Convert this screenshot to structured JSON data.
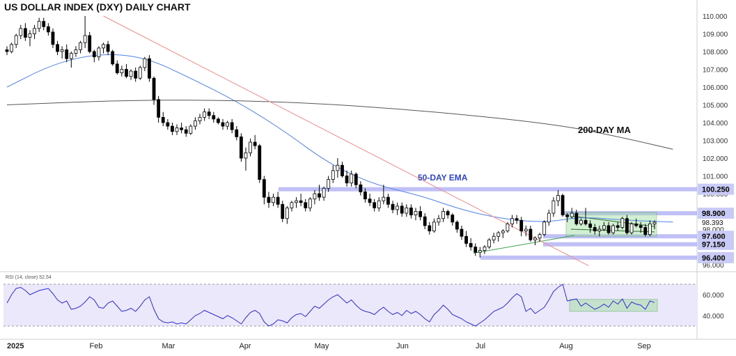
{
  "chart_data": {
    "type": "candlestick",
    "title": "US DOLLAR INDEX (DXY) DAILY CHART",
    "price_axis": {
      "ylim": [
        95.8,
        110.6
      ],
      "ticks": [
        "110.000",
        "109.000",
        "108.000",
        "107.000",
        "106.000",
        "105.000",
        "104.000",
        "103.000",
        "102.000",
        "101.000",
        "100.000",
        "99.000",
        "98.000",
        "97.000",
        "96.000"
      ]
    },
    "x_axis": {
      "labels": [
        "2025",
        "Feb",
        "Mar",
        "Apr",
        "May",
        "Jun",
        "Jul",
        "Aug",
        "Sep"
      ]
    },
    "ohlc": [
      [
        108.1,
        108.3,
        107.8,
        108.0
      ],
      [
        108.0,
        108.5,
        107.9,
        108.4
      ],
      [
        108.4,
        109.0,
        108.2,
        108.9
      ],
      [
        108.9,
        109.5,
        108.7,
        109.3
      ],
      [
        109.3,
        109.6,
        108.6,
        108.8
      ],
      [
        108.8,
        109.2,
        108.3,
        109.0
      ],
      [
        109.0,
        109.5,
        108.7,
        109.3
      ],
      [
        109.3,
        109.9,
        109.1,
        109.7
      ],
      [
        109.7,
        109.9,
        109.2,
        109.4
      ],
      [
        109.4,
        109.6,
        108.9,
        109.1
      ],
      [
        109.1,
        109.3,
        108.2,
        108.4
      ],
      [
        108.4,
        108.6,
        107.8,
        108.0
      ],
      [
        108.0,
        108.3,
        107.6,
        108.1
      ],
      [
        108.1,
        108.4,
        107.4,
        107.6
      ],
      [
        107.6,
        108.0,
        107.1,
        107.9
      ],
      [
        107.9,
        108.3,
        107.7,
        108.1
      ],
      [
        108.1,
        108.6,
        107.9,
        108.5
      ],
      [
        108.5,
        110.0,
        108.2,
        108.9
      ],
      [
        108.9,
        109.1,
        107.9,
        108.0
      ],
      [
        108.0,
        108.1,
        107.4,
        107.7
      ],
      [
        107.7,
        108.3,
        107.5,
        108.2
      ],
      [
        108.2,
        108.5,
        107.9,
        108.4
      ],
      [
        108.4,
        108.6,
        107.8,
        108.0
      ],
      [
        108.0,
        108.1,
        107.2,
        107.3
      ],
      [
        107.3,
        107.5,
        106.7,
        106.8
      ],
      [
        106.8,
        107.2,
        106.6,
        107.0
      ],
      [
        107.0,
        107.3,
        106.5,
        106.6
      ],
      [
        106.6,
        107.0,
        106.4,
        106.9
      ],
      [
        106.9,
        107.1,
        106.3,
        106.5
      ],
      [
        106.5,
        107.2,
        106.4,
        107.1
      ],
      [
        107.1,
        107.7,
        106.9,
        107.6
      ],
      [
        107.6,
        107.8,
        106.3,
        106.5
      ],
      [
        106.5,
        106.6,
        105.0,
        105.3
      ],
      [
        105.3,
        105.5,
        104.0,
        104.3
      ],
      [
        104.3,
        104.6,
        103.8,
        104.0
      ],
      [
        104.0,
        104.2,
        103.6,
        103.8
      ],
      [
        103.8,
        104.0,
        103.3,
        103.5
      ],
      [
        103.5,
        103.9,
        103.3,
        103.7
      ],
      [
        103.7,
        104.0,
        103.4,
        103.6
      ],
      [
        103.6,
        103.8,
        103.2,
        103.4
      ],
      [
        103.4,
        103.9,
        103.3,
        103.8
      ],
      [
        103.8,
        104.3,
        103.6,
        104.1
      ],
      [
        104.1,
        104.5,
        103.9,
        104.3
      ],
      [
        104.3,
        104.8,
        104.1,
        104.6
      ],
      [
        104.6,
        104.8,
        104.2,
        104.4
      ],
      [
        104.4,
        104.6,
        104.0,
        104.2
      ],
      [
        104.2,
        104.3,
        103.9,
        104.0
      ],
      [
        104.0,
        104.2,
        103.6,
        103.8
      ],
      [
        103.8,
        104.1,
        103.6,
        104.0
      ],
      [
        104.0,
        104.2,
        103.4,
        103.6
      ],
      [
        103.6,
        103.8,
        103.0,
        103.2
      ],
      [
        103.2,
        103.4,
        101.8,
        102.0
      ],
      [
        102.0,
        102.6,
        101.3,
        102.3
      ],
      [
        102.3,
        103.1,
        102.1,
        102.9
      ],
      [
        102.9,
        103.3,
        102.5,
        102.7
      ],
      [
        102.7,
        102.8,
        100.6,
        100.8
      ],
      [
        100.8,
        101.0,
        99.4,
        99.8
      ],
      [
        99.8,
        100.1,
        99.2,
        99.5
      ],
      [
        99.5,
        100.0,
        99.3,
        99.8
      ],
      [
        99.8,
        100.1,
        99.2,
        99.4
      ],
      [
        99.4,
        99.6,
        98.4,
        98.6
      ],
      [
        98.6,
        99.3,
        98.3,
        99.2
      ],
      [
        99.2,
        99.6,
        99.0,
        99.5
      ],
      [
        99.5,
        99.8,
        99.2,
        99.6
      ],
      [
        99.6,
        100.0,
        99.3,
        99.5
      ],
      [
        99.5,
        99.7,
        99.0,
        99.2
      ],
      [
        99.2,
        99.8,
        99.0,
        99.7
      ],
      [
        99.7,
        100.2,
        99.4,
        100.0
      ],
      [
        100.0,
        100.5,
        99.6,
        99.8
      ],
      [
        99.8,
        100.4,
        99.6,
        100.3
      ],
      [
        100.3,
        101.0,
        100.1,
        100.8
      ],
      [
        100.8,
        101.6,
        100.6,
        101.3
      ],
      [
        101.3,
        102.0,
        100.9,
        101.6
      ],
      [
        101.6,
        101.8,
        100.9,
        101.0
      ],
      [
        101.0,
        101.3,
        100.4,
        100.6
      ],
      [
        100.6,
        101.3,
        100.4,
        101.1
      ],
      [
        101.1,
        101.2,
        100.3,
        100.5
      ],
      [
        100.5,
        100.7,
        99.9,
        100.1
      ],
      [
        100.1,
        100.3,
        99.5,
        99.7
      ],
      [
        99.7,
        100.0,
        99.3,
        99.5
      ],
      [
        99.5,
        99.7,
        99.0,
        99.2
      ],
      [
        99.2,
        99.8,
        99.0,
        99.6
      ],
      [
        99.6,
        100.5,
        99.4,
        99.8
      ],
      [
        99.8,
        100.0,
        99.2,
        99.4
      ],
      [
        99.4,
        99.6,
        98.9,
        99.1
      ],
      [
        99.1,
        99.5,
        98.8,
        99.3
      ],
      [
        99.3,
        99.5,
        98.7,
        98.9
      ],
      [
        98.9,
        99.4,
        98.7,
        99.2
      ],
      [
        99.2,
        99.4,
        98.6,
        98.8
      ],
      [
        98.8,
        99.2,
        98.5,
        99.0
      ],
      [
        99.0,
        99.3,
        98.5,
        98.7
      ],
      [
        98.7,
        98.9,
        98.0,
        98.2
      ],
      [
        98.2,
        98.4,
        97.7,
        97.9
      ],
      [
        97.9,
        98.6,
        97.8,
        98.4
      ],
      [
        98.4,
        98.8,
        98.2,
        98.6
      ],
      [
        98.6,
        99.2,
        98.4,
        99.0
      ],
      [
        99.0,
        99.1,
        98.6,
        98.8
      ],
      [
        98.8,
        98.9,
        98.2,
        98.4
      ],
      [
        98.4,
        98.5,
        97.8,
        98.0
      ],
      [
        98.0,
        98.2,
        97.4,
        97.6
      ],
      [
        97.6,
        97.9,
        97.0,
        97.2
      ],
      [
        97.2,
        97.5,
        96.8,
        97.0
      ],
      [
        97.0,
        97.2,
        96.5,
        96.7
      ],
      [
        96.7,
        97.0,
        96.4,
        96.8
      ],
      [
        96.8,
        97.1,
        96.6,
        97.0
      ],
      [
        97.0,
        97.5,
        96.9,
        97.4
      ],
      [
        97.4,
        97.8,
        97.2,
        97.6
      ],
      [
        97.6,
        97.9,
        97.3,
        97.8
      ],
      [
        97.8,
        98.0,
        97.5,
        97.9
      ],
      [
        97.9,
        98.4,
        97.8,
        98.3
      ],
      [
        98.3,
        98.8,
        98.1,
        98.6
      ],
      [
        98.6,
        98.8,
        98.3,
        98.5
      ],
      [
        98.5,
        98.7,
        97.6,
        97.9
      ],
      [
        97.9,
        98.2,
        97.6,
        98.0
      ],
      [
        98.0,
        98.2,
        97.3,
        97.4
      ],
      [
        97.4,
        97.6,
        97.1,
        97.5
      ],
      [
        97.5,
        97.8,
        97.3,
        97.7
      ],
      [
        97.7,
        98.5,
        97.6,
        98.4
      ],
      [
        98.4,
        99.1,
        98.2,
        98.9
      ],
      [
        98.9,
        99.8,
        98.7,
        99.6
      ],
      [
        99.6,
        100.2,
        99.3,
        99.9
      ],
      [
        99.9,
        100.0,
        98.7,
        98.8
      ],
      [
        98.8,
        98.9,
        98.4,
        98.7
      ],
      [
        98.7,
        99.2,
        98.6,
        98.9
      ],
      [
        98.9,
        99.1,
        98.2,
        98.3
      ],
      [
        98.3,
        98.6,
        98.2,
        98.5
      ],
      [
        98.5,
        99.2,
        98.2,
        98.3
      ],
      [
        98.3,
        98.5,
        97.8,
        98.1
      ],
      [
        98.1,
        98.3,
        97.7,
        97.9
      ],
      [
        97.9,
        98.2,
        97.6,
        98.0
      ],
      [
        98.0,
        98.4,
        97.9,
        98.2
      ],
      [
        98.2,
        98.4,
        97.7,
        97.8
      ],
      [
        97.8,
        98.3,
        97.7,
        98.2
      ],
      [
        98.2,
        98.4,
        97.9,
        98.1
      ],
      [
        98.1,
        98.7,
        98.0,
        98.6
      ],
      [
        98.6,
        98.8,
        97.7,
        97.8
      ],
      [
        97.8,
        98.4,
        97.7,
        98.3
      ],
      [
        98.3,
        98.6,
        98.1,
        98.2
      ],
      [
        98.2,
        98.4,
        97.8,
        98.1
      ],
      [
        98.1,
        98.3,
        97.6,
        97.7
      ],
      [
        97.7,
        98.5,
        97.6,
        98.3
      ],
      [
        98.3,
        98.5,
        98.0,
        98.39
      ]
    ],
    "series": [
      {
        "name": "50-DAY EMA",
        "color": "#4e82e8",
        "points": [
          [
            0,
            106.0
          ],
          [
            10,
            107.3
          ],
          [
            20,
            107.9
          ],
          [
            30,
            107.7
          ],
          [
            40,
            106.5
          ],
          [
            50,
            105.2
          ],
          [
            60,
            103.6
          ],
          [
            70,
            101.7
          ],
          [
            80,
            100.5
          ],
          [
            90,
            99.9
          ],
          [
            100,
            99.0
          ],
          [
            110,
            98.5
          ],
          [
            118,
            98.4
          ],
          [
            125,
            98.7
          ],
          [
            135,
            98.5
          ],
          [
            145,
            98.4
          ]
        ]
      },
      {
        "name": "200-DAY MA",
        "color": "#555555",
        "points": [
          [
            0,
            105.0
          ],
          [
            30,
            105.3
          ],
          [
            60,
            105.2
          ],
          [
            90,
            104.7
          ],
          [
            120,
            103.9
          ],
          [
            135,
            103.1
          ],
          [
            145,
            102.5
          ]
        ]
      },
      {
        "color": "#f28b8b",
        "points": [
          [
            21,
            110.0
          ],
          [
            138,
            96.0
          ]
        ]
      }
    ],
    "levels": [
      "100.250",
      "98.900",
      "97.600",
      "97.150",
      "96.400"
    ],
    "current_price": "98.393",
    "annotations": [
      "50-DAY EMA",
      "200-DAY MA"
    ],
    "rsi": {
      "label": "RSI (14, close)",
      "value": "52.54",
      "ticks": [
        "60.000",
        "40.000"
      ],
      "ylim": [
        20,
        80
      ],
      "band": [
        30,
        70
      ],
      "values": [
        52,
        60,
        66,
        67,
        64,
        60,
        62,
        64,
        65,
        66,
        61,
        55,
        52,
        54,
        46,
        47,
        49,
        53,
        58,
        55,
        48,
        47,
        52,
        54,
        49,
        44,
        45,
        47,
        44,
        49,
        55,
        58,
        46,
        37,
        34,
        33,
        34,
        32,
        33,
        32,
        36,
        40,
        42,
        45,
        43,
        41,
        39,
        37,
        40,
        38,
        35,
        32,
        38,
        43,
        45,
        42,
        34,
        30,
        32,
        36,
        35,
        33,
        38,
        41,
        42,
        39,
        44,
        49,
        47,
        51,
        55,
        58,
        60,
        56,
        52,
        55,
        50,
        46,
        44,
        43,
        41,
        45,
        48,
        44,
        41,
        43,
        40,
        45,
        42,
        44,
        41,
        37,
        34,
        41,
        45,
        50,
        46,
        41,
        39,
        37,
        34,
        32,
        30,
        33,
        36,
        40,
        44,
        46,
        48,
        52,
        57,
        61,
        58,
        44,
        47,
        42,
        45,
        48,
        55,
        63,
        67,
        70,
        54,
        55,
        56,
        49,
        52,
        49,
        46,
        48,
        51,
        48,
        54,
        51,
        56,
        47,
        53,
        51,
        50,
        46,
        54,
        52.54
      ]
    }
  }
}
